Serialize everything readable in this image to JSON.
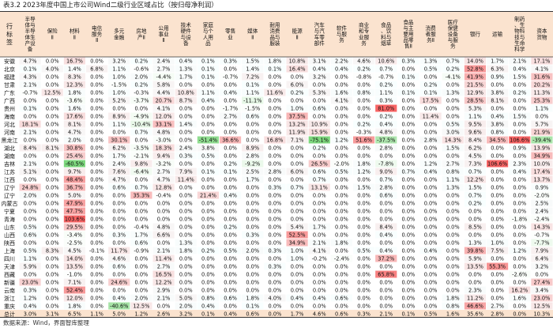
{
  "chart_data": {
    "type": "heatmap",
    "title": "表3.2 2023年度中国上市公司Wind二级行业区域占比（按归母净利润）",
    "source": "数据来源：Wind，界面智库整理",
    "row_header": "行标签",
    "columns": [
      "半导体与半导体生产设备",
      "保险Ⅱ",
      "材料Ⅱ",
      "电信服务Ⅱ",
      "多元金融",
      "房地产Ⅱ",
      "公用事业Ⅱ",
      "技术硬件与设备",
      "家庭与个人用品",
      "零售业",
      "媒体Ⅱ",
      "耐用消费品与服装",
      "能源Ⅱ",
      "汽车与汽车零部件",
      "软件与服务",
      "商业和专业服务",
      "食品、饮料与烟草",
      "食品与主要用品零售Ⅱ",
      "消费者服务Ⅱ",
      "医疗保健设备与服务",
      "银行",
      "运输",
      "制药、生物科技与生命科学",
      "资本货物"
    ],
    "rows": [
      {
        "region": "安徽",
        "values": [
          "4.7%",
          "0.0%",
          "16.7%",
          "0.0%",
          "3.2%",
          "0.2%",
          "2.4%",
          "0.4%",
          "0.1%",
          "0.3%",
          "1.5%",
          "1.8%",
          "10.8%",
          "3.1%",
          "2.2%",
          "4.6%",
          "10.6%",
          "0.3%",
          "1.3%",
          "0.7%",
          "14.0%",
          "1.7%",
          "2.1%",
          "17.1%"
        ]
      },
      {
        "region": "北京",
        "values": [
          "0.1%",
          "4.0%",
          "1.4%",
          "6.8%",
          "1.1%",
          "-0.6%",
          "2.7%",
          "1.3%",
          "0.1%",
          "0.0%",
          "1.4%",
          "0.1%",
          "16.4%",
          "0.4%",
          "0.4%",
          "0.2%",
          "0.7%",
          "0.0%",
          "0.5%",
          "0.2%",
          "52.8%",
          "6.3%",
          "0.4%",
          "4.1%"
        ]
      },
      {
        "region": "福建",
        "values": [
          "4.3%",
          "0.0%",
          "8.3%",
          "0.0%",
          "1.0%",
          "2.0%",
          "-4.4%",
          "1.7%",
          "0.1%",
          "-0.7%",
          "7.2%",
          "0.0%",
          "0.0%",
          "3.2%",
          "0.0%",
          "-0.8%",
          "-0.7%",
          "0.1%",
          "0.0%",
          "-4.1%",
          "41.9%",
          "0.9%",
          "1.5%",
          "31.6%"
        ]
      },
      {
        "region": "甘肃",
        "values": [
          "2.1%",
          "0.0%",
          "12.3%",
          "0.0%",
          "-1.5%",
          "0.2%",
          "5.8%",
          "0.0%",
          "0.0%",
          "0.0%",
          "0.1%",
          "0.0%",
          "6.0%",
          "0.0%",
          "0.0%",
          "0.0%",
          "0.2%",
          "0.0%",
          "0.2%",
          "0.0%",
          "21.5%",
          "0.0%",
          "0.0%",
          "20.2%"
        ]
      },
      {
        "region": "广东",
        "values": [
          "-0.7%",
          "12.5%",
          "1.8%",
          "0.0%",
          "1.0%",
          "-0.3%",
          "4.4%",
          "10.8%",
          "1.1%",
          "0.4%",
          "1.1%",
          "11.6%",
          "0.2%",
          "5.3%",
          "1.6%",
          "0.8%",
          "1.1%",
          "0.1%",
          "0.1%",
          "1.3%",
          "12.9%",
          "3.8%",
          "0.2%",
          "11.3%"
        ]
      },
      {
        "region": "广西",
        "values": [
          "0.0%",
          "0.0%",
          "-3.6%",
          "0.0%",
          "5.2%",
          "-3.7%",
          "20.7%",
          "8.7%",
          "0.4%",
          "0.0%",
          "-11.1%",
          "0.0%",
          "0.0%",
          "0.0%",
          "4.1%",
          "0.0%",
          "0.3%",
          "0.0%",
          "17.5%",
          "0.0%",
          "28.5%",
          "8.1%",
          "0.0%",
          "25.3%"
        ]
      },
      {
        "region": "贵州",
        "values": [
          "0.1%",
          "0.0%",
          "1.6%",
          "0.0%",
          "0.0%",
          "0.0%",
          "4.1%",
          "0.0%",
          "0.0%",
          "-1.7%",
          "-1.5%",
          "0.0%",
          "1.0%",
          "0.6%",
          "0.0%",
          "0.0%",
          "81.0%",
          "0.0%",
          "0.0%",
          "0.0%",
          "5.3%",
          "0.0%",
          "0.0%",
          "1.1%"
        ]
      },
      {
        "region": "海南",
        "values": [
          "0.0%",
          "0.0%",
          "17.6%",
          "0.0%",
          "8.9%",
          "-4.9%",
          "12.0%",
          "0.0%",
          "0.0%",
          "2.7%",
          "0.6%",
          "0.0%",
          "37.5%",
          "0.0%",
          "0.0%",
          "0.0%",
          "0.2%",
          "0.0%",
          "11.4%",
          "0.0%",
          "1.1%",
          "0.4%",
          "1.5%",
          "0.0%"
        ]
      },
      {
        "region": "河北",
        "values": [
          "18.1%",
          "0.0%",
          "8.1%",
          "0.0%",
          "1.1%",
          "-10.4%",
          "33.1%",
          "1.4%",
          "0.0%",
          "0.0%",
          "0.0%",
          "0.0%",
          "13.2%",
          "10.9%",
          "0.0%",
          "0.2%",
          "0.4%",
          "0.0%",
          "0.0%",
          "0.5%",
          "9.5%",
          "3.8%",
          "0.0%",
          "5.7%"
        ]
      },
      {
        "region": "河南",
        "values": [
          "2.1%",
          "0.0%",
          "4.7%",
          "0.0%",
          "0.0%",
          "0.7%",
          "4.8%",
          "0.0%",
          "0.0%",
          "0.0%",
          "0.0%",
          "0.0%",
          "11.9%",
          "15.9%",
          "0.0%",
          "-0.3%",
          "4.8%",
          "0.0%",
          "0.0%",
          "3.0%",
          "9.6%",
          "0.8%",
          "0.0%",
          "21.9%"
        ]
      },
      {
        "region": "黑龙江",
        "values": [
          "0.0%",
          "0.0%",
          "2.0%",
          "0.0%",
          "30.1%",
          "0.0%",
          "-3.0%",
          "0.0%",
          "-51.4%",
          "36.6%",
          "0.0%",
          "16.8%",
          "7.1%",
          "-75.1%",
          "1.2%",
          "51.6%",
          "-37.5%",
          "0.0%",
          "2.8%",
          "14.3%",
          "8.4%",
          "34.5%",
          "106.6%",
          "-39.4%"
        ]
      },
      {
        "region": "湖北",
        "values": [
          "8.4%",
          "8.1%",
          "30.8%",
          "0.0%",
          "6.2%",
          "-3.5%",
          "18.3%",
          "2.4%",
          "3.8%",
          "0.0%",
          "8.9%",
          "0.0%",
          "0.0%",
          "0.2%",
          "0.0%",
          "0.0%",
          "2.8%",
          "0.0%",
          "0.0%",
          "1.5%",
          "6.2%",
          "0.0%",
          "0.9%",
          "13.9%"
        ]
      },
      {
        "region": "湖南",
        "values": [
          "0.0%",
          "0.0%",
          "25.4%",
          "0.0%",
          "1.7%",
          "-2.1%",
          "9.4%",
          "0.3%",
          "0.5%",
          "0.0%",
          "2.8%",
          "0.0%",
          "0.0%",
          "0.0%",
          "0.0%",
          "0.0%",
          "0.0%",
          "0.0%",
          "0.0%",
          "0.0%",
          "4.5%",
          "0.0%",
          "0.0%",
          "34.9%"
        ]
      },
      {
        "region": "吉林",
        "values": [
          "2.1%",
          "0.0%",
          "-60.5%",
          "0.0%",
          "2.4%",
          "9.8%",
          "-3.2%",
          "0.0%",
          "0.0%",
          "0.2%",
          "-9.2%",
          "0.0%",
          "0.0%",
          "26.5%",
          "-2.0%",
          "1.8%",
          "-7.8%",
          "0.0%",
          "1.2%",
          "2.7%",
          "7.3%",
          "106.6%",
          "2.3%",
          "10.0%"
        ]
      },
      {
        "region": "江苏",
        "values": [
          "5.1%",
          "0.0%",
          "9.7%",
          "0.0%",
          "7.6%",
          "-6.4%",
          "2.7%",
          "7.9%",
          "0.1%",
          "0.1%",
          "2.5%",
          "2.8%",
          "6.0%",
          "0.6%",
          "0.5%",
          "1.2%",
          "9.0%",
          "0.7%",
          "0.4%",
          "0.8%",
          "0.7%",
          "0.0%",
          "0.4%",
          "17.4%"
        ]
      },
      {
        "region": "江西",
        "values": [
          "0.0%",
          "0.0%",
          "48.4%",
          "0.0%",
          "4.7%",
          "0.0%",
          "4.7%",
          "11.4%",
          "0.0%",
          "0.0%",
          "1.7%",
          "0.0%",
          "0.0%",
          "0.7%",
          "0.0%",
          "0.0%",
          "0.7%",
          "0.0%",
          "0.0%",
          "1.1%",
          "12.2%",
          "0.0%",
          "0.0%",
          "13.7%"
        ]
      },
      {
        "region": "辽宁",
        "values": [
          "24.8%",
          "0.0%",
          "36.7%",
          "0.0%",
          "0.6%",
          "0.7%",
          "12.8%",
          "0.0%",
          "0.0%",
          "0.0%",
          "0.0%",
          "0.3%",
          "0.7%",
          "13.1%",
          "0.0%",
          "1.5%",
          "2.8%",
          "0.0%",
          "0.0%",
          "1.3%",
          "1.5%",
          "0.0%",
          "0.0%",
          "0.9%"
        ]
      },
      {
        "region": "辽宁",
        "values": [
          "2.0%",
          "0.0%",
          "5.0%",
          "0.0%",
          "0.0%",
          "35.3%",
          "-0.4%",
          "0.0%",
          "21.4%",
          "0.4%",
          "0.0%",
          "0.0%",
          "0.0%",
          "0.0%",
          "0.0%",
          "0.0%",
          "0.6%",
          "0.0%",
          "0.0%",
          "0.0%",
          "0.7%",
          "0.0%",
          "0.0%",
          "-2.0%"
        ]
      },
      {
        "region": "内蒙古",
        "values": [
          "0.0%",
          "0.0%",
          "47.9%",
          "0.0%",
          "0.0%",
          "0.0%",
          "0.0%",
          "0.0%",
          "0.0%",
          "0.0%",
          "0.0%",
          "0.0%",
          "0.0%",
          "0.0%",
          "0.0%",
          "0.0%",
          "0.0%",
          "0.0%",
          "0.0%",
          "0.0%",
          "0.2%",
          "0.0%",
          "0.0%",
          "2.5%"
        ]
      },
      {
        "region": "宁夏",
        "values": [
          "0.0%",
          "0.0%",
          "47.7%",
          "0.0%",
          "0.0%",
          "0.0%",
          "0.0%",
          "0.0%",
          "0.0%",
          "0.0%",
          "0.0%",
          "0.0%",
          "0.0%",
          "0.0%",
          "0.0%",
          "0.0%",
          "0.0%",
          "0.0%",
          "0.0%",
          "0.0%",
          "0.0%",
          "0.0%",
          "0.0%",
          "2.4%"
        ]
      },
      {
        "region": "青海",
        "values": [
          "0.0%",
          "0.0%",
          "103.6%",
          "0.0%",
          "0.0%",
          "0.0%",
          "0.0%",
          "0.0%",
          "0.0%",
          "0.0%",
          "0.0%",
          "0.0%",
          "0.0%",
          "0.0%",
          "0.0%",
          "0.0%",
          "0.0%",
          "0.0%",
          "0.0%",
          "0.0%",
          "0.0%",
          "0.0%",
          "-1.8%",
          "-2.4%"
        ]
      },
      {
        "region": "山东",
        "values": [
          "0.5%",
          "0.0%",
          "29.5%",
          "0.0%",
          "0.0%",
          "-0.4%",
          "4.8%",
          "0.0%",
          "0.0%",
          "0.2%",
          "0.0%",
          "0.0%",
          "5.4%",
          "1.7%",
          "0.0%",
          "0.0%",
          "8.4%",
          "0.0%",
          "0.0%",
          "0.0%",
          "8.5%",
          "0.0%",
          "0.0%",
          "14.3%"
        ]
      },
      {
        "region": "山西",
        "values": [
          "0.6%",
          "0.0%",
          "-3.4%",
          "0.0%",
          "0.3%",
          "1.7%",
          "6.6%",
          "0.0%",
          "0.0%",
          "0.0%",
          "0.3%",
          "0.0%",
          "52.5%",
          "0.0%",
          "0.0%",
          "0.0%",
          "0.4%",
          "0.0%",
          "0.0%",
          "0.0%",
          "0.0%",
          "0.0%",
          "0.0%",
          "-0.7%"
        ]
      },
      {
        "region": "陕西",
        "values": [
          "0.0%",
          "0.0%",
          "-2.5%",
          "0.0%",
          "0.0%",
          "0.6%",
          "0.0%",
          "1.3%",
          "0.0%",
          "0.0%",
          "0.0%",
          "0.0%",
          "34.9%",
          "2.1%",
          "1.8%",
          "0.0%",
          "0.0%",
          "0.0%",
          "0.0%",
          "0.0%",
          "1.3%",
          "1.0%",
          "0.0%",
          "-7.7%"
        ]
      },
      {
        "region": "上海",
        "values": [
          "0.5%",
          "8.3%",
          "4.5%",
          "-0.1%",
          "11.7%",
          "-0.9%",
          "2.1%",
          "1.8%",
          "0.2%",
          "0.5%",
          "2.0%",
          "0.3%",
          "1.0%",
          "4.1%",
          "0.0%",
          "0.5%",
          "0.4%",
          "0.0%",
          "0.4%",
          "0.0%",
          "39.8%",
          "7.5%",
          "1.2%",
          "7.9%"
        ]
      },
      {
        "region": "四川",
        "values": [
          "1.1%",
          "0.0%",
          "14.0%",
          "0.0%",
          "4.6%",
          "0.0%",
          "11.4%",
          "0.0%",
          "0.0%",
          "0.0%",
          "0.0%",
          "0.0%",
          "1.0%",
          "-0.2%",
          "-2.4%",
          "0.0%",
          "37.2%",
          "0.0%",
          "0.0%",
          "0.0%",
          "5.9%",
          "0.0%",
          "0.0%",
          "6.4%"
        ]
      },
      {
        "region": "天津",
        "values": [
          "5.9%",
          "0.0%",
          "13.5%",
          "0.0%",
          "0.6%",
          "0.0%",
          "2.7%",
          "0.0%",
          "0.0%",
          "0.0%",
          "0.0%",
          "0.3%",
          "0.0%",
          "0.0%",
          "0.0%",
          "0.0%",
          "0.0%",
          "0.0%",
          "0.0%",
          "0.0%",
          "13.5%",
          "55.3%",
          "0.0%",
          "3.2%"
        ]
      },
      {
        "region": "西藏",
        "values": [
          "0.0%",
          "0.0%",
          "-1.0%",
          "0.0%",
          "0.0%",
          "0.0%",
          "16.5%",
          "0.0%",
          "0.0%",
          "0.0%",
          "0.0%",
          "0.0%",
          "0.0%",
          "0.0%",
          "0.0%",
          "0.0%",
          "65.8%",
          "0.0%",
          "0.0%",
          "0.0%",
          "0.0%",
          "0.0%",
          "-2.6%",
          "0.0%"
        ]
      },
      {
        "region": "新疆",
        "values": [
          "23.0%",
          "0.0%",
          "7.1%",
          "0.0%",
          "24.6%",
          "0.0%",
          "12.2%",
          "0.0%",
          "0.0%",
          "0.0%",
          "0.0%",
          "0.0%",
          "0.0%",
          "0.0%",
          "0.0%",
          "0.0%",
          "0.0%",
          "0.0%",
          "0.0%",
          "0.0%",
          "0.0%",
          "0.0%",
          "0.0%",
          "27.4%"
        ]
      },
      {
        "region": "云南",
        "values": [
          "0.3%",
          "0.0%",
          "52.4%",
          "0.0%",
          "0.0%",
          "0.0%",
          "2.9%",
          "0.0%",
          "0.0%",
          "0.0%",
          "0.0%",
          "0.0%",
          "0.0%",
          "0.0%",
          "0.0%",
          "0.0%",
          "0.0%",
          "0.0%",
          "0.0%",
          "0.0%",
          "2.3%",
          "0.0%",
          "16.2%",
          "3.4%"
        ]
      },
      {
        "region": "浙江",
        "values": [
          "1.2%",
          "0.0%",
          "12.0%",
          "0.0%",
          "0.4%",
          "2.0%",
          "2.1%",
          "5.0%",
          "0.8%",
          "0.6%",
          "1.8%",
          "4.0%",
          "0.4%",
          "0.4%",
          "0.6%",
          "0.0%",
          "0.0%",
          "0.0%",
          "0.0%",
          "1.8%",
          "11.2%",
          "0.0%",
          "1.6%",
          "23.0%"
        ]
      },
      {
        "region": "重庆",
        "values": [
          "0.4%",
          "0.0%",
          "1.8%",
          "0.0%",
          "-40.6%",
          "12.5%",
          "0.0%",
          "2.0%",
          "0.4%",
          "0.0%",
          "0.1%",
          "0.0%",
          "0.0%",
          "0.0%",
          "0.0%",
          "0.0%",
          "0.0%",
          "0.0%",
          "0.0%",
          "0.8%",
          "46.6%",
          "2.7%",
          "0.0%",
          "12.5%"
        ]
      },
      {
        "region": "总计",
        "values": [
          "3.0%",
          "3.1%",
          "6.5%",
          "1.1%",
          "5.0%",
          "1.2%",
          "2.6%",
          "3.2%",
          "0.1%",
          "0.4%",
          "0.6%",
          "0.0%",
          "1.7%",
          "4.6%",
          "0.6%",
          "0.3%",
          "2.1%",
          "0.1%",
          "0.5%",
          "1.6%",
          "35.6%",
          "2.8%",
          "0.0%",
          "10.3%"
        ]
      }
    ]
  }
}
